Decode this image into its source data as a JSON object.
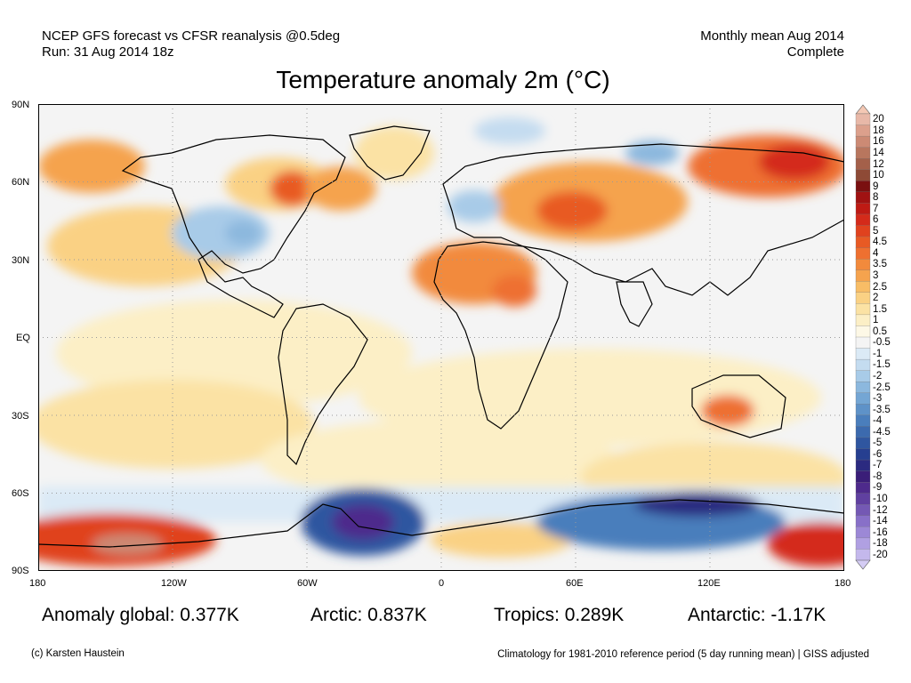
{
  "header": {
    "left_line1": "NCEP GFS forecast vs CFSR reanalysis @0.5deg",
    "left_line2": "Run: 31 Aug 2014 18z",
    "right_line1": "Monthly mean Aug 2014",
    "right_line2": "Complete"
  },
  "title": "Temperature anomaly 2m (°C)",
  "axes": {
    "lat_ticks": [
      "90N",
      "60N",
      "30N",
      "EQ",
      "30S",
      "60S",
      "90S"
    ],
    "lon_ticks": [
      "180",
      "120W",
      "60W",
      "0",
      "60E",
      "120E",
      "180"
    ]
  },
  "colorbar": {
    "labels": [
      "20",
      "18",
      "16",
      "14",
      "12",
      "10",
      "9",
      "8",
      "7",
      "6",
      "5",
      "4.5",
      "4",
      "3.5",
      "3",
      "2.5",
      "2",
      "1.5",
      "1",
      "0.5",
      "-0.5",
      "-1",
      "-1.5",
      "-2",
      "-2.5",
      "-3",
      "-3.5",
      "-4",
      "-4.5",
      "-5",
      "-6",
      "-7",
      "-8",
      "-9",
      "-10",
      "-12",
      "-14",
      "-16",
      "-18",
      "-20"
    ],
    "colors": [
      "#e8b8a8",
      "#dca08c",
      "#cc8a74",
      "#b8765e",
      "#a4604a",
      "#8e4a36",
      "#7a1010",
      "#a01212",
      "#be1a14",
      "#d42a1a",
      "#e0421e",
      "#e85a24",
      "#ee7030",
      "#f28a3c",
      "#f5a34e",
      "#f8bd66",
      "#fad184",
      "#fbe2a4",
      "#fcefc6",
      "#fdf8e6",
      "#f4f4f4",
      "#dbeaf6",
      "#c4dcf0",
      "#a8cbe8",
      "#8cb8de",
      "#74a6d4",
      "#5e92c8",
      "#4a7ebc",
      "#3c6aae",
      "#2f56a0",
      "#263f90",
      "#2b2a80",
      "#3a1e78",
      "#4e2a8c",
      "#6040a0",
      "#7458b4",
      "#8870c8",
      "#9c88d6",
      "#b0a0e2",
      "#c4b8ec"
    ],
    "tip_top_color": "#f4c8b4",
    "tip_bottom_color": "#d4ccf4"
  },
  "stats": {
    "global": "Anomaly global: 0.377K",
    "arctic": "Arctic: 0.837K",
    "tropics": "Tropics: 0.289K",
    "antarctic": "Antarctic: -1.17K"
  },
  "footer": {
    "credit": "(c) Karsten Haustein",
    "note": "Climatology for 1981-2010 reference period (5 day running mean) | GISS adjusted"
  }
}
